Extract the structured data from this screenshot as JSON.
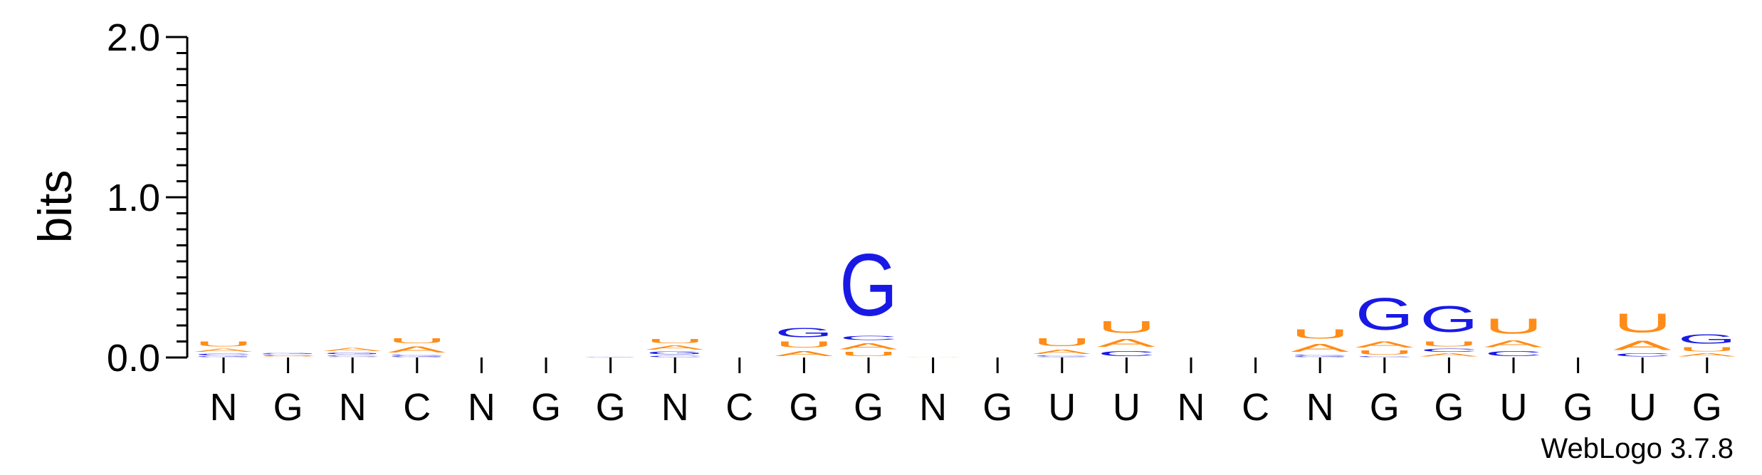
{
  "chart_data": {
    "type": "sequence-logo",
    "ylabel": "bits",
    "ylim": [
      0,
      2.0
    ],
    "yticks": [
      "0.0",
      "1.0",
      "2.0"
    ],
    "colors": {
      "G": "#1919e6",
      "C": "#1919e6",
      "A": "#ff8c19",
      "U": "#ff8c19"
    },
    "consensus": [
      "N",
      "G",
      "N",
      "C",
      "N",
      "G",
      "G",
      "N",
      "C",
      "G",
      "G",
      "N",
      "G",
      "U",
      "U",
      "N",
      "C",
      "N",
      "G",
      "G",
      "U",
      "G",
      "U",
      "G"
    ],
    "columns": [
      [
        {
          "base": "G",
          "bits": 0.01
        },
        {
          "base": "C",
          "bits": 0.02
        },
        {
          "base": "A",
          "bits": 0.03
        },
        {
          "base": "U",
          "bits": 0.05
        }
      ],
      [
        {
          "base": "A",
          "bits": 0.005
        },
        {
          "base": "U",
          "bits": 0.005
        },
        {
          "base": "C",
          "bits": 0.01
        },
        {
          "base": "G",
          "bits": 0.01
        }
      ],
      [
        {
          "base": "U",
          "bits": 0.005
        },
        {
          "base": "C",
          "bits": 0.01
        },
        {
          "base": "G",
          "bits": 0.02
        },
        {
          "base": "A",
          "bits": 0.03
        }
      ],
      [
        {
          "base": "G",
          "bits": 0.01
        },
        {
          "base": "C",
          "bits": 0.01
        },
        {
          "base": "A",
          "bits": 0.06
        },
        {
          "base": "U",
          "bits": 0.05
        }
      ],
      [],
      [],
      [
        {
          "base": "G",
          "bits": 0.005
        }
      ],
      [
        {
          "base": "C",
          "bits": 0.015
        },
        {
          "base": "G",
          "bits": 0.025
        },
        {
          "base": "A",
          "bits": 0.04
        },
        {
          "base": "U",
          "bits": 0.04
        }
      ],
      [],
      [
        {
          "base": "A",
          "bits": 0.05
        },
        {
          "base": "U",
          "bits": 0.06
        },
        {
          "base": "G",
          "bits": 0.09
        }
      ],
      [
        {
          "base": "U",
          "bits": 0.04
        },
        {
          "base": "A",
          "bits": 0.06
        },
        {
          "base": "C",
          "bits": 0.04
        },
        {
          "base": "G",
          "bits": 0.62
        }
      ],
      [
        {
          "base": "A",
          "bits": 0.005
        }
      ],
      [],
      [
        {
          "base": "G",
          "bits": 0.005
        },
        {
          "base": "C",
          "bits": 0.01
        },
        {
          "base": "A",
          "bits": 0.04
        },
        {
          "base": "U",
          "bits": 0.08
        }
      ],
      [
        {
          "base": "C",
          "bits": 0.05
        },
        {
          "base": "A",
          "bits": 0.08
        },
        {
          "base": "U",
          "bits": 0.12
        }
      ],
      [],
      [],
      [
        {
          "base": "G",
          "bits": 0.01
        },
        {
          "base": "C",
          "bits": 0.01
        },
        {
          "base": "A",
          "bits": 0.08
        },
        {
          "base": "U",
          "bits": 0.09
        }
      ],
      [
        {
          "base": "C",
          "bits": 0.01
        },
        {
          "base": "U",
          "bits": 0.04
        },
        {
          "base": "A",
          "bits": 0.06
        },
        {
          "base": "G",
          "bits": 0.32
        }
      ],
      [
        {
          "base": "A",
          "bits": 0.03
        },
        {
          "base": "C",
          "bits": 0.03
        },
        {
          "base": "U",
          "bits": 0.05
        },
        {
          "base": "G",
          "bits": 0.26
        }
      ],
      [
        {
          "base": "C",
          "bits": 0.05
        },
        {
          "base": "A",
          "bits": 0.07
        },
        {
          "base": "U",
          "bits": 0.15
        }
      ],
      [],
      [
        {
          "base": "C",
          "bits": 0.03
        },
        {
          "base": "A",
          "bits": 0.09
        },
        {
          "base": "U",
          "bits": 0.19
        }
      ],
      [
        {
          "base": "A",
          "bits": 0.03
        },
        {
          "base": "U",
          "bits": 0.04
        },
        {
          "base": "G",
          "bits": 0.09
        }
      ]
    ]
  },
  "footer": {
    "text": "WebLogo 3.7.8"
  }
}
